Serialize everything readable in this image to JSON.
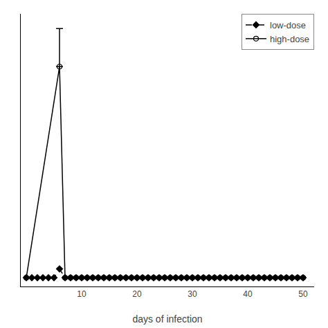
{
  "chart_data": {
    "type": "line",
    "xlabel": "days of infection",
    "xlim": [
      -1,
      52
    ],
    "ylim": [
      -0.03,
      0.9
    ],
    "xticks": [
      10,
      20,
      30,
      40,
      50
    ],
    "yticks": [],
    "tick_labels": "x",
    "grid": false,
    "legend": "upper right",
    "series": [
      {
        "name": "high-dose",
        "color": "#000000",
        "line_style": "solid",
        "marker": "open circle",
        "x": [
          0,
          6,
          7,
          8,
          9,
          10,
          11,
          12,
          13,
          14,
          15,
          16,
          17,
          18,
          19,
          20,
          21,
          22,
          23,
          24,
          25,
          26,
          27,
          28,
          29,
          30,
          31,
          32,
          33,
          34,
          35,
          36,
          37,
          38,
          39,
          40,
          41,
          42,
          43,
          44,
          45,
          46,
          47,
          48,
          49,
          50
        ],
        "values": [
          0.0,
          0.72,
          0.0,
          0.0,
          0.0,
          0.0,
          0.0,
          0.0,
          0.0,
          0.0,
          0.0,
          0.0,
          0.0,
          0.0,
          0.0,
          0.0,
          0.0,
          0.0,
          0.0,
          0.0,
          0.0,
          0.0,
          0.0,
          0.0,
          0.0,
          0.0,
          0.0,
          0.0,
          0.0,
          0.0,
          0.0,
          0.0,
          0.0,
          0.0,
          0.0,
          0.0,
          0.0,
          0.0,
          0.0,
          0.0,
          0.0,
          0.0,
          0.0,
          0.0,
          0.0,
          0.0
        ],
        "error_bars": [
          {
            "x": 6,
            "y": 0.72,
            "upper": 0.13,
            "lower": 0.0
          }
        ]
      },
      {
        "name": "low-dose",
        "color": "#000000",
        "line_style": "dash",
        "marker": "diamond",
        "x": [
          0,
          1,
          2,
          3,
          4,
          5,
          6,
          7,
          8,
          9,
          10,
          11,
          12,
          13,
          14,
          15,
          16,
          17,
          18,
          19,
          20,
          21,
          22,
          23,
          24,
          25,
          26,
          27,
          28,
          29,
          30,
          31,
          32,
          33,
          34,
          35,
          36,
          37,
          38,
          39,
          40,
          41,
          42,
          43,
          44,
          45,
          46,
          47,
          48,
          49,
          50
        ],
        "values": [
          0.0,
          0.0,
          0.0,
          0.0,
          0.0,
          0.0,
          0.03,
          0.0,
          0.0,
          0.0,
          0.0,
          0.0,
          0.0,
          0.0,
          0.0,
          0.0,
          0.0,
          0.0,
          0.0,
          0.0,
          0.0,
          0.0,
          0.0,
          0.0,
          0.0,
          0.0,
          0.0,
          0.0,
          0.0,
          0.0,
          0.0,
          0.0,
          0.0,
          0.0,
          0.0,
          0.0,
          0.0,
          0.0,
          0.0,
          0.0,
          0.0,
          0.0,
          0.0,
          0.0,
          0.0,
          0.0,
          0.0,
          0.0,
          0.0,
          0.0,
          0.0
        ]
      }
    ]
  }
}
